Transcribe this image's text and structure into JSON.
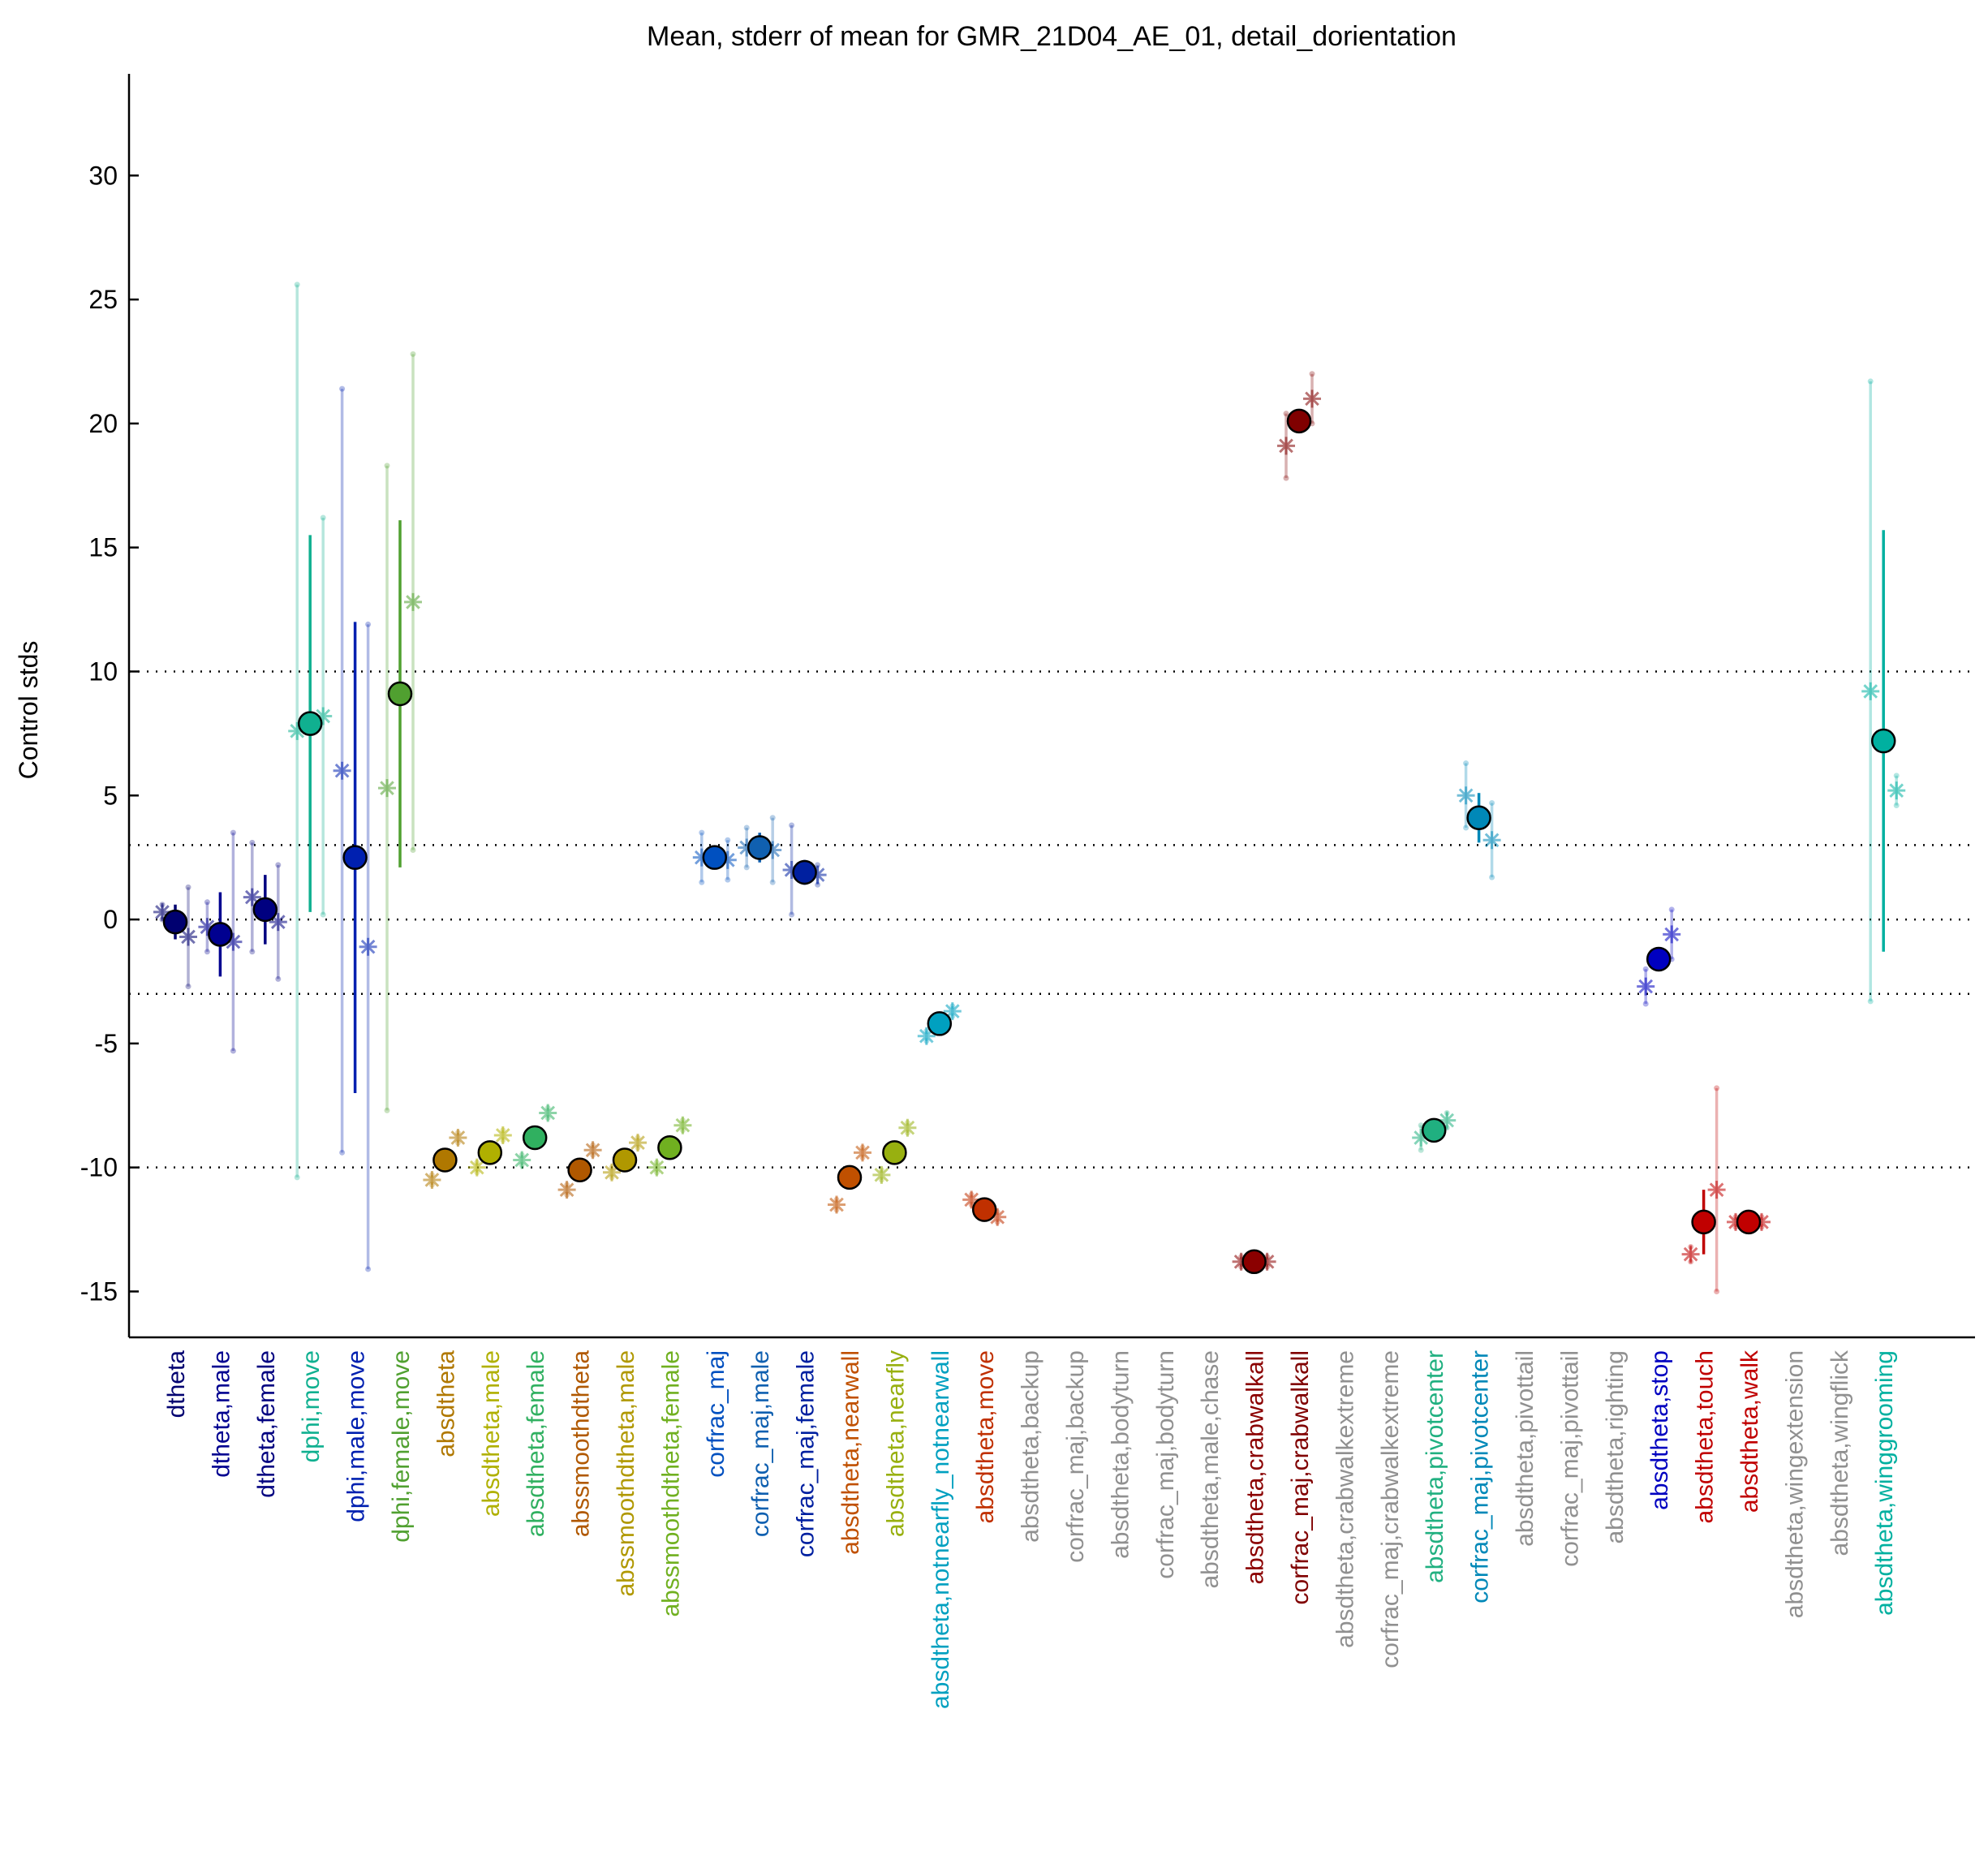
{
  "chart_data": {
    "type": "errorbar",
    "title": "Mean, stderr of mean for GMR_21D04_AE_01, detail_dorientation",
    "y_label": "Control stds",
    "ylim": [
      -16.85,
      34.1
    ],
    "yticks": [
      -15,
      -10,
      -5,
      0,
      5,
      10,
      15,
      20,
      25,
      30
    ],
    "hlines": [
      10,
      3,
      0,
      -3,
      -10
    ],
    "categories": [
      "dtheta",
      "dtheta,male",
      "dtheta,female",
      "dphi,move",
      "dphi,male,move",
      "dphi,female,move",
      "absdtheta",
      "absdtheta,male",
      "absdtheta,female",
      "abssmoothdtheta",
      "abssmoothdtheta,male",
      "abssmoothdtheta,female",
      "corfrac_maj",
      "corfrac_maj,male",
      "corfrac_maj,female",
      "absdtheta,nearwall",
      "absdtheta,nearfly",
      "absdtheta,notnearfly_notnearwall",
      "absdtheta,move",
      "absdtheta,backup",
      "corfrac_maj,backup",
      "absdtheta,bodyturn",
      "corfrac_maj,bodyturn",
      "absdtheta,male,chase",
      "absdtheta,crabwalkall",
      "corfrac_maj,crabwalkall",
      "absdtheta,crabwalkextreme",
      "corfrac_maj,crabwalkextreme",
      "absdtheta,pivotcenter",
      "corfrac_maj,pivotcenter",
      "absdtheta,pivottail",
      "corfrac_maj,pivottail",
      "absdtheta,righting",
      "absdtheta,stop",
      "absdtheta,touch",
      "absdtheta,walk",
      "absdtheta,wingextension",
      "absdtheta,wingflick",
      "absdtheta,winggrooming"
    ],
    "colors": [
      "#000070",
      "#000090",
      "#000080",
      "#10b090",
      "#0020b0",
      "#50a030",
      "#b07800",
      "#b0b000",
      "#30b060",
      "#b05800",
      "#b09800",
      "#70b020",
      "#0050c0",
      "#1060b0",
      "#0020a0",
      "#c05000",
      "#98b010",
      "#00a0c0",
      "#c03000",
      "#909090",
      "#909090",
      "#909090",
      "#909090",
      "#909090",
      "#8b0000",
      "#800000",
      "#909090",
      "#909090",
      "#20b080",
      "#0088b8",
      "#909090",
      "#909090",
      "#909090",
      "#0000c0",
      "#c00000",
      "#c00000",
      "#909090",
      "#909090",
      "#00b0a0"
    ],
    "values": [
      -0.1,
      -0.6,
      0.4,
      7.9,
      2.5,
      9.1,
      -9.7,
      -9.4,
      -8.8,
      -10.1,
      -9.7,
      -9.2,
      2.5,
      2.9,
      1.9,
      -10.4,
      -9.4,
      -4.2,
      -11.7,
      null,
      null,
      null,
      null,
      null,
      -13.8,
      20.1,
      null,
      null,
      -8.5,
      4.1,
      null,
      null,
      null,
      -1.6,
      -12.2,
      -12.2,
      null,
      null,
      7.2
    ],
    "errors": [
      0.7,
      1.7,
      1.4,
      7.6,
      9.5,
      7.0,
      0.2,
      0.2,
      0.2,
      0.2,
      0.2,
      0.2,
      0.3,
      0.6,
      0.5,
      0.2,
      0.2,
      0.2,
      0.2,
      null,
      null,
      null,
      null,
      null,
      0.2,
      0.3,
      null,
      null,
      0.2,
      1.0,
      null,
      null,
      null,
      0.4,
      1.3,
      0.2,
      null,
      null,
      8.5
    ],
    "male_values": [
      0.3,
      -0.3,
      0.9,
      7.6,
      6.0,
      5.3,
      -10.5,
      -10.0,
      -9.7,
      -10.9,
      -10.2,
      -10.0,
      2.5,
      2.9,
      2.0,
      -11.5,
      -10.3,
      -4.7,
      -11.3,
      null,
      null,
      null,
      null,
      null,
      -13.8,
      19.1,
      null,
      null,
      -8.8,
      5.0,
      null,
      null,
      null,
      -2.7,
      -13.5,
      -12.2,
      null,
      null,
      9.2
    ],
    "male_errors": [
      0.3,
      1.0,
      2.2,
      18.0,
      15.4,
      13.0,
      0.2,
      0.2,
      0.2,
      0.2,
      0.2,
      0.2,
      1.0,
      0.8,
      1.8,
      0.2,
      0.2,
      0.2,
      0.2,
      null,
      null,
      null,
      null,
      null,
      0.2,
      1.3,
      null,
      null,
      0.5,
      1.3,
      null,
      null,
      null,
      0.7,
      0.3,
      0.2,
      null,
      null,
      12.5
    ],
    "female_values": [
      -0.7,
      -0.9,
      -0.1,
      8.2,
      -1.1,
      12.8,
      -8.8,
      -8.7,
      -7.8,
      -9.3,
      -9.0,
      -8.3,
      2.4,
      2.8,
      1.8,
      -9.4,
      -8.4,
      -3.7,
      -12.0,
      null,
      null,
      null,
      null,
      null,
      -13.8,
      21.0,
      null,
      null,
      -8.1,
      3.2,
      null,
      null,
      null,
      -0.6,
      -10.9,
      -12.2,
      null,
      null,
      5.2
    ],
    "female_errors": [
      2.0,
      4.4,
      2.3,
      8.0,
      13.0,
      10.0,
      0.2,
      0.2,
      0.2,
      0.2,
      0.2,
      0.2,
      0.8,
      1.3,
      0.4,
      0.2,
      0.2,
      0.2,
      0.2,
      null,
      null,
      null,
      null,
      null,
      0.2,
      1.0,
      null,
      null,
      0.3,
      1.5,
      null,
      null,
      null,
      1.0,
      4.1,
      0.2,
      null,
      null,
      0.6
    ]
  }
}
